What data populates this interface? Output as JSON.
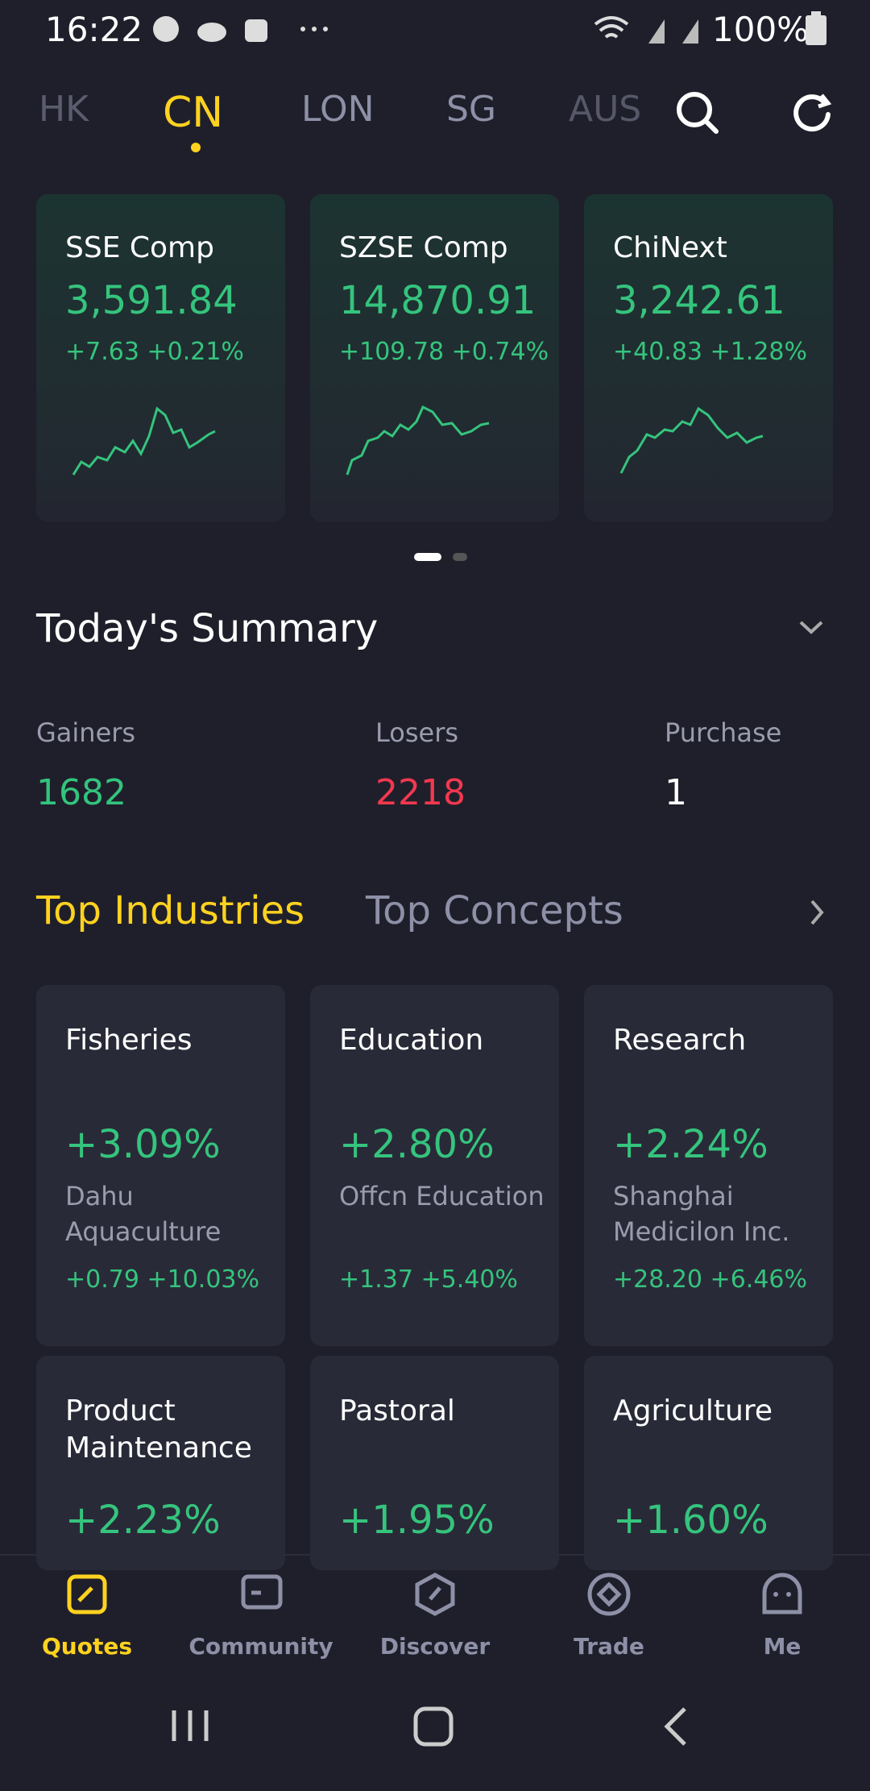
{
  "status": {
    "time": "16:22",
    "battery": "100%"
  },
  "market_tabs": {
    "items": [
      "HK",
      "CN",
      "LON",
      "SG",
      "AUS"
    ],
    "active": 1
  },
  "indices": [
    {
      "name": "SSE Comp",
      "value": "3,591.84",
      "change": "+7.63 +0.21%"
    },
    {
      "name": "SZSE Comp",
      "value": "14,870.91",
      "change": "+109.78 +0.74%"
    },
    {
      "name": "ChiNext",
      "value": "3,242.61",
      "change": "+40.83 +1.28%"
    }
  ],
  "summary": {
    "title": "Today's Summary",
    "stats": [
      {
        "label": "Gainers",
        "value": "1682",
        "color": "#33c47d"
      },
      {
        "label": "Losers",
        "value": "2218",
        "color": "#f2384f"
      },
      {
        "label": "Purchase",
        "value": "1",
        "color": "#ffffff"
      }
    ]
  },
  "section_tabs": {
    "items": [
      "Top Industries",
      "Top Concepts"
    ],
    "active": 0
  },
  "industries": [
    {
      "name": "Fisheries",
      "change": "+3.09%",
      "stock": "Dahu Aquaculture",
      "stock_change": "+0.79 +10.03%"
    },
    {
      "name": "Education",
      "change": "+2.80%",
      "stock": "Offcn Education",
      "stock_change": "+1.37 +5.40%"
    },
    {
      "name": "Research",
      "change": "+2.24%",
      "stock": "Shanghai Medicilon Inc.",
      "stock_change": "+28.20 +6.46%"
    },
    {
      "name": "Product Maintenance",
      "change": "+2.23%"
    },
    {
      "name": "Pastoral",
      "change": "+1.95%"
    },
    {
      "name": "Agriculture",
      "change": "+1.60%"
    }
  ],
  "nav": {
    "items": [
      "Quotes",
      "Community",
      "Discover",
      "Trade",
      "Me"
    ],
    "active": 0
  }
}
